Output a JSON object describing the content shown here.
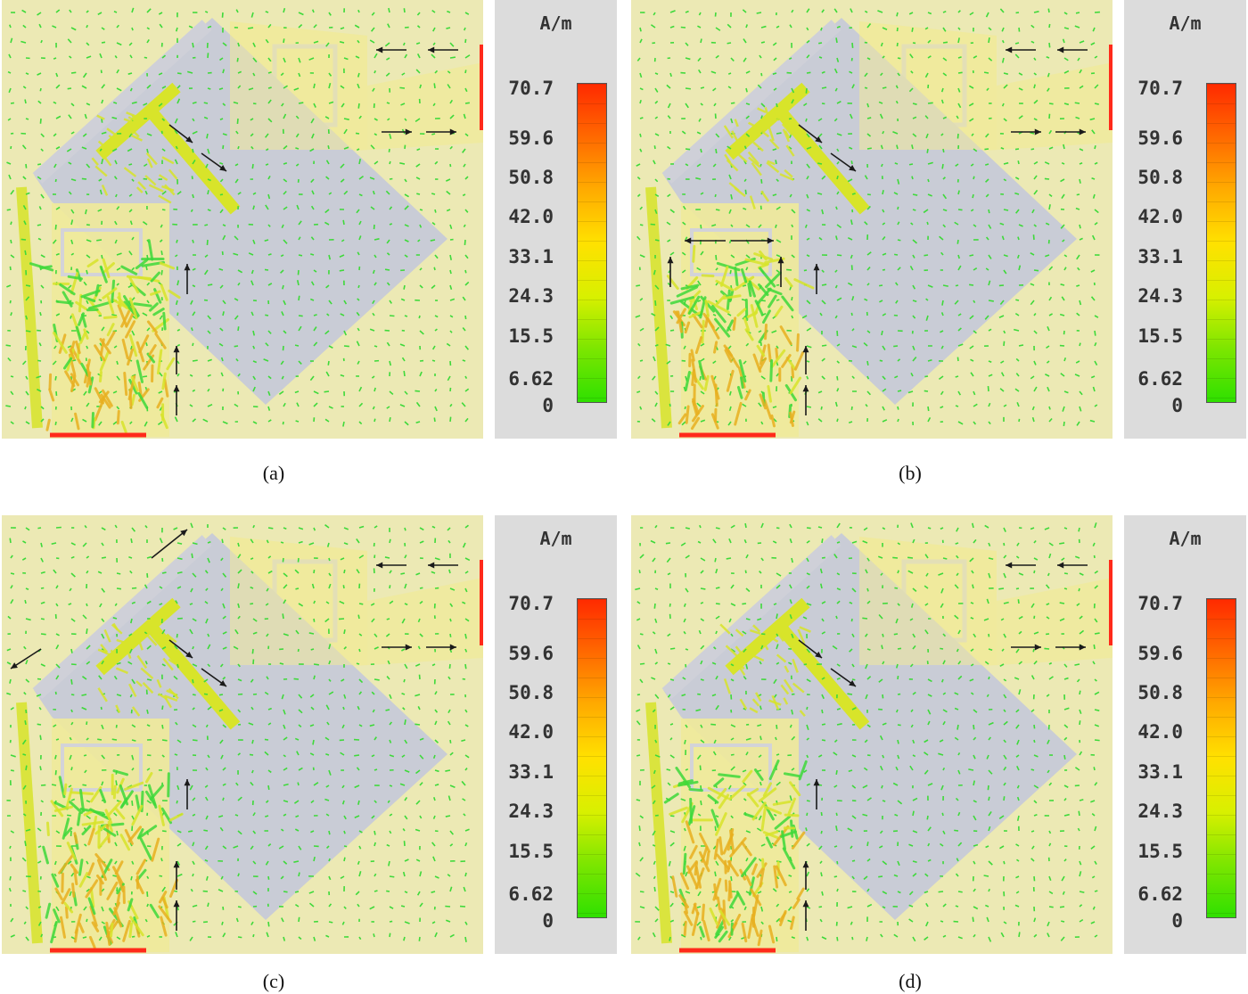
{
  "figure": {
    "legend": {
      "unit": "A/m",
      "ticks": [
        "70.7",
        "59.6",
        "50.8",
        "42.0",
        "33.1",
        "24.3",
        "15.5",
        "6.62",
        "0"
      ],
      "range": [
        0,
        70.7
      ],
      "colors": [
        "#ff2a00",
        "#ff6a00",
        "#ffaa00",
        "#ffe100",
        "#d8f000",
        "#7ee600",
        "#2fe000"
      ]
    },
    "colors": {
      "background": "#ece9b4",
      "ground_plane": "#c9ccd6",
      "patch": "#f0ea9a",
      "port_line": "#ff2a1a",
      "arrow": "#1a1a1a",
      "field_low": "#3ed93a",
      "field_mid": "#d8e42a",
      "field_high": "#e8b020"
    },
    "panels": [
      {
        "caption": "(a)",
        "extra_arrows": "none",
        "hotspot_level": 0.55
      },
      {
        "caption": "(b)",
        "extra_arrows": "inner-loop",
        "hotspot_level": 0.72
      },
      {
        "caption": "(c)",
        "extra_arrows": "outer-diagonal",
        "hotspot_level": 0.65
      },
      {
        "caption": "(d)",
        "extra_arrows": "none",
        "hotspot_level": 0.78
      }
    ]
  }
}
